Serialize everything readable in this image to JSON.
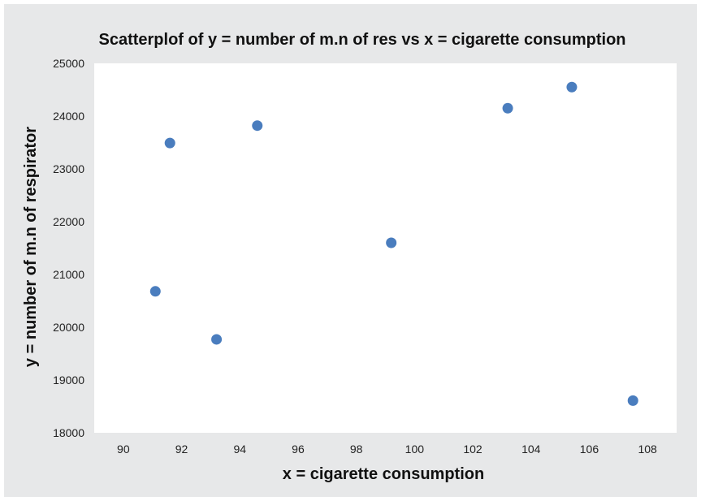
{
  "colors": {
    "background": "#e7e8e9",
    "plot_area": "#ffffff",
    "marker": "#4a7dbe"
  },
  "chart_data": {
    "type": "scatter",
    "title": "Scatterplof of y = number of m.n of res vs x = cigarette consumption",
    "xlabel": "x = cigarette consumption",
    "ylabel": "y = number of m.n of respirator",
    "xlim": [
      89,
      109
    ],
    "ylim": [
      18000,
      25000
    ],
    "xticks": [
      90,
      92,
      94,
      96,
      98,
      100,
      102,
      104,
      106,
      108
    ],
    "yticks": [
      18000,
      19000,
      20000,
      21000,
      22000,
      23000,
      24000,
      25000
    ],
    "grid": false,
    "legend": "none",
    "points": [
      {
        "x": 91.1,
        "y": 20680
      },
      {
        "x": 91.6,
        "y": 23490
      },
      {
        "x": 93.2,
        "y": 19770
      },
      {
        "x": 94.6,
        "y": 23820
      },
      {
        "x": 99.2,
        "y": 21600
      },
      {
        "x": 103.2,
        "y": 24150
      },
      {
        "x": 105.4,
        "y": 24550
      },
      {
        "x": 107.5,
        "y": 18610
      }
    ]
  }
}
